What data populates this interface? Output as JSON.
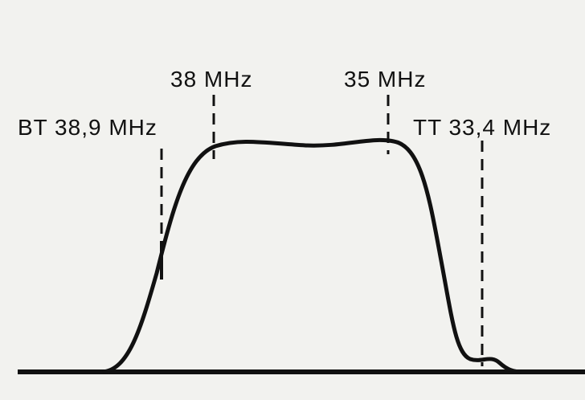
{
  "markers": [
    {
      "label": "BT 38,9 MHz"
    },
    {
      "label": "38 MHz"
    },
    {
      "label": "35 MHz"
    },
    {
      "label": "TT 33,4 MHz"
    }
  ]
}
